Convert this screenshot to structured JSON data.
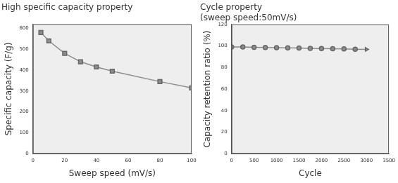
{
  "chart_data": [
    {
      "type": "line",
      "title": "High specific capacity property",
      "x_label": "Sweep speed (mV/s)",
      "y_label": "Specific capacity (F/g)",
      "x": [
        5,
        10,
        20,
        30,
        40,
        50,
        80,
        100
      ],
      "values": [
        580,
        540,
        480,
        440,
        415,
        395,
        345,
        315
      ],
      "color": "#8c8c8c",
      "marker": "square",
      "xlim": [
        0,
        100
      ],
      "xticks": [
        0,
        20,
        40,
        60,
        80,
        100
      ],
      "ylim": [
        0,
        620
      ],
      "yticks": [
        0,
        100,
        200,
        300,
        400,
        500,
        600
      ],
      "grid": false
    },
    {
      "type": "line",
      "title": "Cycle property",
      "subtitle": "(sweep speed:50mV/s)",
      "x_label": "Cycle",
      "y_label": "Capacity retention ratio (%)",
      "x": [
        0,
        250,
        500,
        750,
        1000,
        1250,
        1500,
        1750,
        2000,
        2250,
        2500,
        2750,
        3000
      ],
      "values": [
        99,
        99,
        98.8,
        98.6,
        98.4,
        98.2,
        98,
        97.8,
        97.6,
        97.4,
        97.2,
        97,
        96.8
      ],
      "color": "#8c8c8c",
      "marker": "circle",
      "xlim": [
        0,
        3500
      ],
      "xticks": [
        0,
        500,
        1000,
        1500,
        2000,
        2500,
        3000,
        3500
      ],
      "ylim": [
        0,
        120
      ],
      "yticks": [
        0,
        20,
        40,
        60,
        80,
        100,
        120
      ],
      "grid": false
    }
  ]
}
